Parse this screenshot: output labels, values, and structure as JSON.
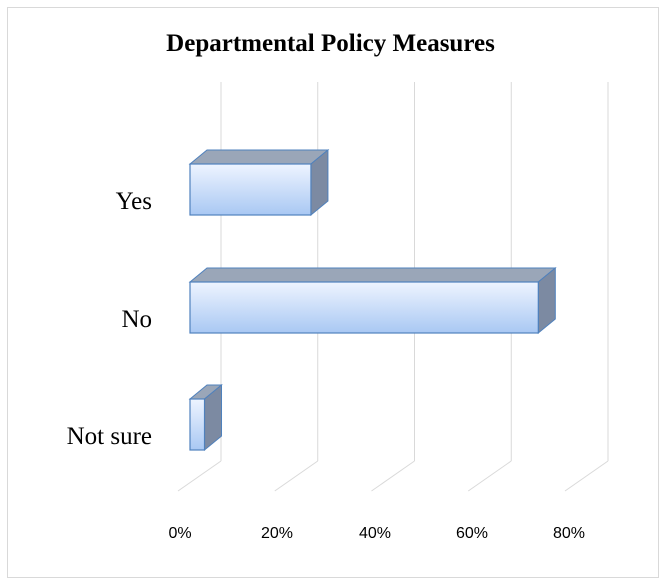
{
  "chart_data": {
    "type": "bar",
    "orientation": "horizontal",
    "title": "Departmental Policy Measures",
    "categories": [
      "Yes",
      "No",
      "Not sure"
    ],
    "values": [
      25,
      72,
      3
    ],
    "xlim": [
      0,
      80
    ],
    "x_ticks": [
      "0%",
      "20%",
      "40%",
      "60%",
      "80%"
    ],
    "grid": true,
    "legend": "none",
    "colors": {
      "bar_front_top": "#eef4ff",
      "bar_front_bottom": "#a9c8f3",
      "bar_top": "#9aa6b8",
      "bar_side": "#7c8aa2",
      "bar_edge": "#4f81bd",
      "grid": "#d9d9d9"
    }
  }
}
